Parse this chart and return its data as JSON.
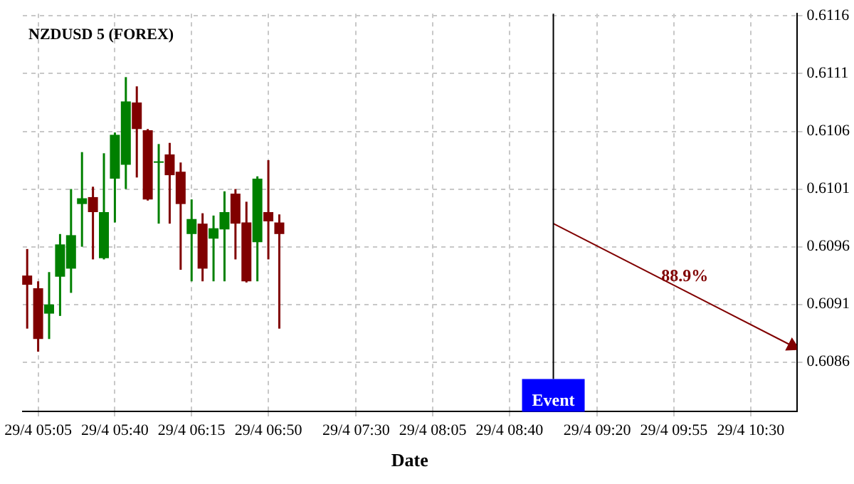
{
  "chart_data": {
    "type": "candlestick",
    "title": "NZDUSD 5 (FOREX)",
    "xlabel": "Date",
    "x": [
      "--04-29T05:00",
      "--04-29T05:05",
      "--04-29T05:10",
      "--04-29T05:15",
      "--04-29T05:20",
      "--04-29T05:25",
      "--04-29T05:30",
      "--04-29T05:35",
      "--04-29T05:40",
      "--04-29T05:45",
      "--04-29T05:50",
      "--04-29T05:55",
      "--04-29T06:00",
      "--04-29T06:05",
      "--04-29T06:10",
      "--04-29T06:15",
      "--04-29T06:20",
      "--04-29T06:25",
      "--04-29T06:30",
      "--04-29T06:35",
      "--04-29T06:40",
      "--04-29T06:45",
      "--04-29T06:50",
      "--04-29T06:55"
    ],
    "ohlc": [
      [
        0.60935,
        0.60958,
        0.60889,
        0.60927
      ],
      [
        0.60924,
        0.6093,
        0.60869,
        0.6088
      ],
      [
        0.60902,
        0.60938,
        0.6088,
        0.6091
      ],
      [
        0.60934,
        0.60971,
        0.609,
        0.60962
      ],
      [
        0.60941,
        0.6101,
        0.6092,
        0.6097
      ],
      [
        0.60997,
        0.61042,
        0.6096,
        0.61002
      ],
      [
        0.61003,
        0.61012,
        0.60949,
        0.6099
      ],
      [
        0.6095,
        0.61041,
        0.60949,
        0.6099
      ],
      [
        0.61019,
        0.61059,
        0.60981,
        0.61057
      ],
      [
        0.61031,
        0.61107,
        0.6101,
        0.61086
      ],
      [
        0.61085,
        0.61099,
        0.6102,
        0.61062
      ],
      [
        0.61061,
        0.61062,
        0.61,
        0.61001
      ],
      [
        0.61033,
        0.61049,
        0.6098,
        0.61034
      ],
      [
        0.6104,
        0.6105,
        0.6098,
        0.61022
      ],
      [
        0.61025,
        0.61033,
        0.6094,
        0.60997
      ],
      [
        0.60971,
        0.61001,
        0.6093,
        0.60984
      ],
      [
        0.6098,
        0.60989,
        0.6093,
        0.60941
      ],
      [
        0.60967,
        0.60987,
        0.6093,
        0.60976
      ],
      [
        0.60975,
        0.61008,
        0.6093,
        0.6099
      ],
      [
        0.61006,
        0.6101,
        0.60949,
        0.6098
      ],
      [
        0.60981,
        0.60999,
        0.60929,
        0.6093
      ],
      [
        0.60964,
        0.61021,
        0.6093,
        0.61019
      ],
      [
        0.6099,
        0.61035,
        0.60949,
        0.60982
      ],
      [
        0.60981,
        0.60988,
        0.60889,
        0.60971
      ]
    ],
    "colors": [
      "#800000",
      "#800000",
      "#008000",
      "#008000",
      "#008000",
      "#008000",
      "#800000",
      "#008000",
      "#008000",
      "#008000",
      "#800000",
      "#800000",
      "#008000",
      "#800000",
      "#800000",
      "#008000",
      "#800000",
      "#008000",
      "#008000",
      "#800000",
      "#800000",
      "#008000",
      "#800000",
      "#800000"
    ],
    "series": [
      {
        "type": "line",
        "x": [
          "--04-29T09:00",
          "--04-29T10:49"
        ],
        "values": [
          0.6098,
          0.60874
        ],
        "color": "#800000"
      }
    ],
    "annotations": [
      "88.9%"
    ],
    "ref_lines": [
      {
        "axis": "x",
        "value": "--04-29T09:00",
        "label": "Event",
        "color": "#000000"
      }
    ],
    "xlim": [
      "--04-29T04:58",
      "--04-29T10:51"
    ],
    "xticks": [
      {
        "value": "--04-29T05:05",
        "label": "29/4 05:05"
      },
      {
        "value": "--04-29T05:40",
        "label": "29/4 05:40"
      },
      {
        "value": "--04-29T06:15",
        "label": "29/4 06:15"
      },
      {
        "value": "--04-29T06:50",
        "label": "29/4 06:50"
      },
      {
        "value": "--04-29T07:30",
        "label": "29/4 07:30"
      },
      {
        "value": "--04-29T08:05",
        "label": "29/4 08:05"
      },
      {
        "value": "--04-29T08:40",
        "label": "29/4 08:40"
      },
      {
        "value": "--04-29T09:20",
        "label": "29/4 09:20"
      },
      {
        "value": "--04-29T09:55",
        "label": "29/4 09:55"
      },
      {
        "value": "--04-29T10:30",
        "label": "29/4 10:30"
      }
    ],
    "ylim": [
      0.60817,
      0.61162
    ],
    "yticks": [
      0.6086,
      0.6091,
      0.6096,
      0.6101,
      0.6106,
      0.6111,
      0.6116
    ],
    "grid": true,
    "legend": false
  }
}
